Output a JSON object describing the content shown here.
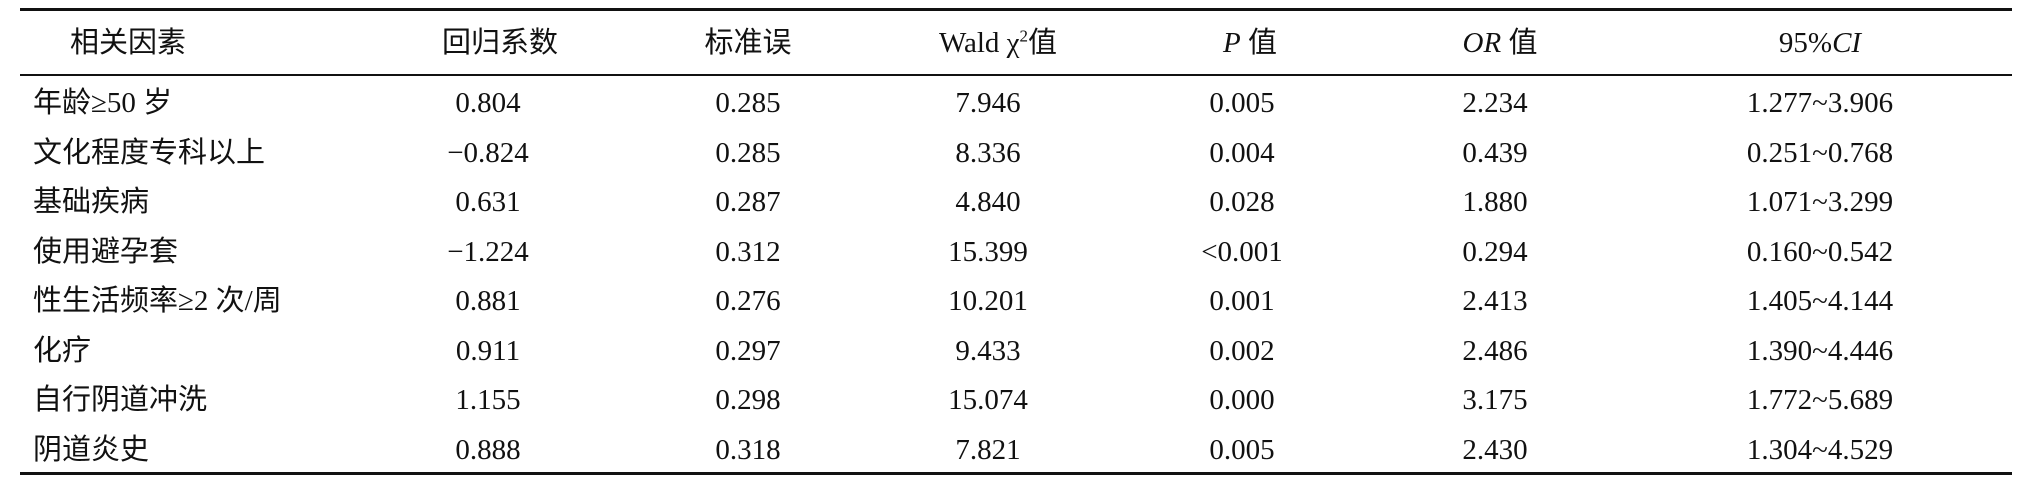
{
  "table": {
    "header": [
      [
        "相关因素"
      ],
      [
        "回归系数"
      ],
      [
        "标准误"
      ],
      [
        "Wald χ",
        "2",
        "值"
      ],
      [
        "P",
        " 值"
      ],
      [
        "OR",
        " 值"
      ],
      [
        "95%",
        "CI"
      ]
    ],
    "rows": [
      [
        "年龄≥50 岁",
        "0.804",
        "0.285",
        "7.946",
        "0.005",
        "2.234",
        "1.277~3.906"
      ],
      [
        "文化程度专科以上",
        "−0.824",
        "0.285",
        "8.336",
        "0.004",
        "0.439",
        "0.251~0.768"
      ],
      [
        "基础疾病",
        "0.631",
        "0.287",
        "4.840",
        "0.028",
        "1.880",
        "1.071~3.299"
      ],
      [
        "使用避孕套",
        "−1.224",
        "0.312",
        "15.399",
        "<0.001",
        "0.294",
        "0.160~0.542"
      ],
      [
        "性生活频率≥2 次/周",
        "0.881",
        "0.276",
        "10.201",
        "0.001",
        "2.413",
        "1.405~4.144"
      ],
      [
        "化疗",
        "0.911",
        "0.297",
        "9.433",
        "0.002",
        "2.486",
        "1.390~4.446"
      ],
      [
        "自行阴道冲洗",
        "1.155",
        "0.298",
        "15.074",
        "0.000",
        "3.175",
        "1.772~5.689"
      ],
      [
        "阴道炎史",
        "0.888",
        "0.318",
        "7.821",
        "0.005",
        "2.430",
        "1.304~4.529"
      ]
    ]
  }
}
